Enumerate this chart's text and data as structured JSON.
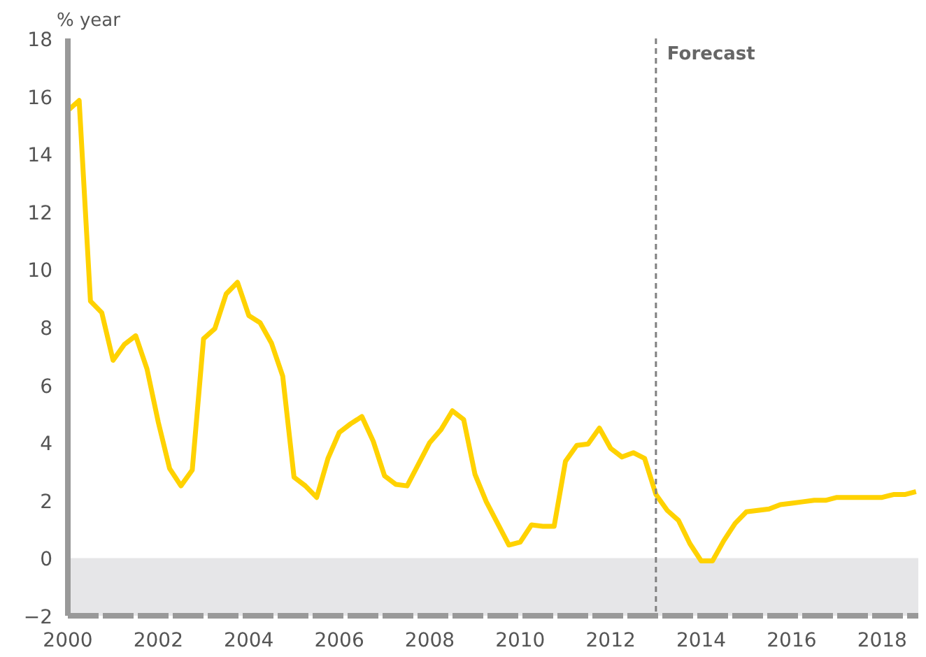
{
  "chart_data": {
    "type": "line",
    "ylabel": "% year",
    "x": [
      2000,
      2000.25,
      2000.5,
      2000.75,
      2001,
      2001.25,
      2001.5,
      2001.75,
      2002,
      2002.25,
      2002.5,
      2002.75,
      2003,
      2003.25,
      2003.5,
      2003.75,
      2004,
      2004.25,
      2004.5,
      2004.75,
      2005,
      2005.25,
      2005.5,
      2005.75,
      2006,
      2006.25,
      2006.5,
      2006.75,
      2007,
      2007.25,
      2007.5,
      2007.75,
      2008,
      2008.25,
      2008.5,
      2008.75,
      2009,
      2009.25,
      2009.5,
      2009.75,
      2010,
      2010.25,
      2010.5,
      2010.75,
      2011,
      2011.25,
      2011.5,
      2011.75,
      2012,
      2012.25,
      2012.5,
      2012.75,
      2013,
      2013.25,
      2013.5,
      2013.75,
      2014,
      2014.25,
      2014.5,
      2014.75,
      2015,
      2015.25,
      2015.5,
      2015.75,
      2016,
      2016.25,
      2016.5,
      2016.75,
      2017,
      2017.25,
      2017.5,
      2017.75,
      2018,
      2018.25,
      2018.5,
      2018.75
    ],
    "series": [
      {
        "color": "#ffd200",
        "values": [
          15.5,
          15.85,
          8.9,
          8.5,
          6.85,
          7.4,
          7.7,
          6.55,
          4.7,
          3.1,
          2.5,
          3.05,
          7.6,
          7.95,
          9.15,
          9.55,
          8.4,
          8.15,
          7.45,
          6.3,
          2.8,
          2.5,
          2.1,
          3.45,
          4.35,
          4.65,
          4.9,
          4.05,
          2.85,
          2.55,
          2.5,
          3.25,
          4.0,
          4.45,
          5.1,
          4.8,
          2.9,
          1.95,
          1.2,
          0.45,
          0.55,
          1.15,
          1.1,
          1.1,
          3.35,
          3.9,
          3.95,
          4.5,
          3.8,
          3.5,
          3.65,
          3.45,
          2.2,
          1.65,
          1.3,
          0.5,
          -0.1,
          -0.1,
          0.6,
          1.2,
          1.6,
          1.65,
          1.7,
          1.85,
          1.9,
          1.95,
          2.0,
          2.0,
          2.1,
          2.1,
          2.1,
          2.1,
          2.1,
          2.2,
          2.2,
          2.3
        ]
      }
    ],
    "xlim": [
      2000,
      2018.8
    ],
    "xticks": [
      2000,
      2002,
      2004,
      2006,
      2008,
      2010,
      2012,
      2014,
      2016,
      2018
    ],
    "ylim": [
      -2,
      18
    ],
    "yticks": [
      -2,
      0,
      2,
      4,
      6,
      8,
      10,
      12,
      14,
      16,
      18
    ],
    "ref_lines": [
      {
        "axis": "x",
        "value": 2013,
        "label": "Forecast",
        "color": "#808080",
        "line_style": "dashed"
      }
    ],
    "bands": [
      {
        "axis": "y",
        "from": -2,
        "to": 0,
        "color": "#e6e6e8"
      }
    ],
    "grid": false,
    "marker": "none",
    "line_style": "solid"
  }
}
